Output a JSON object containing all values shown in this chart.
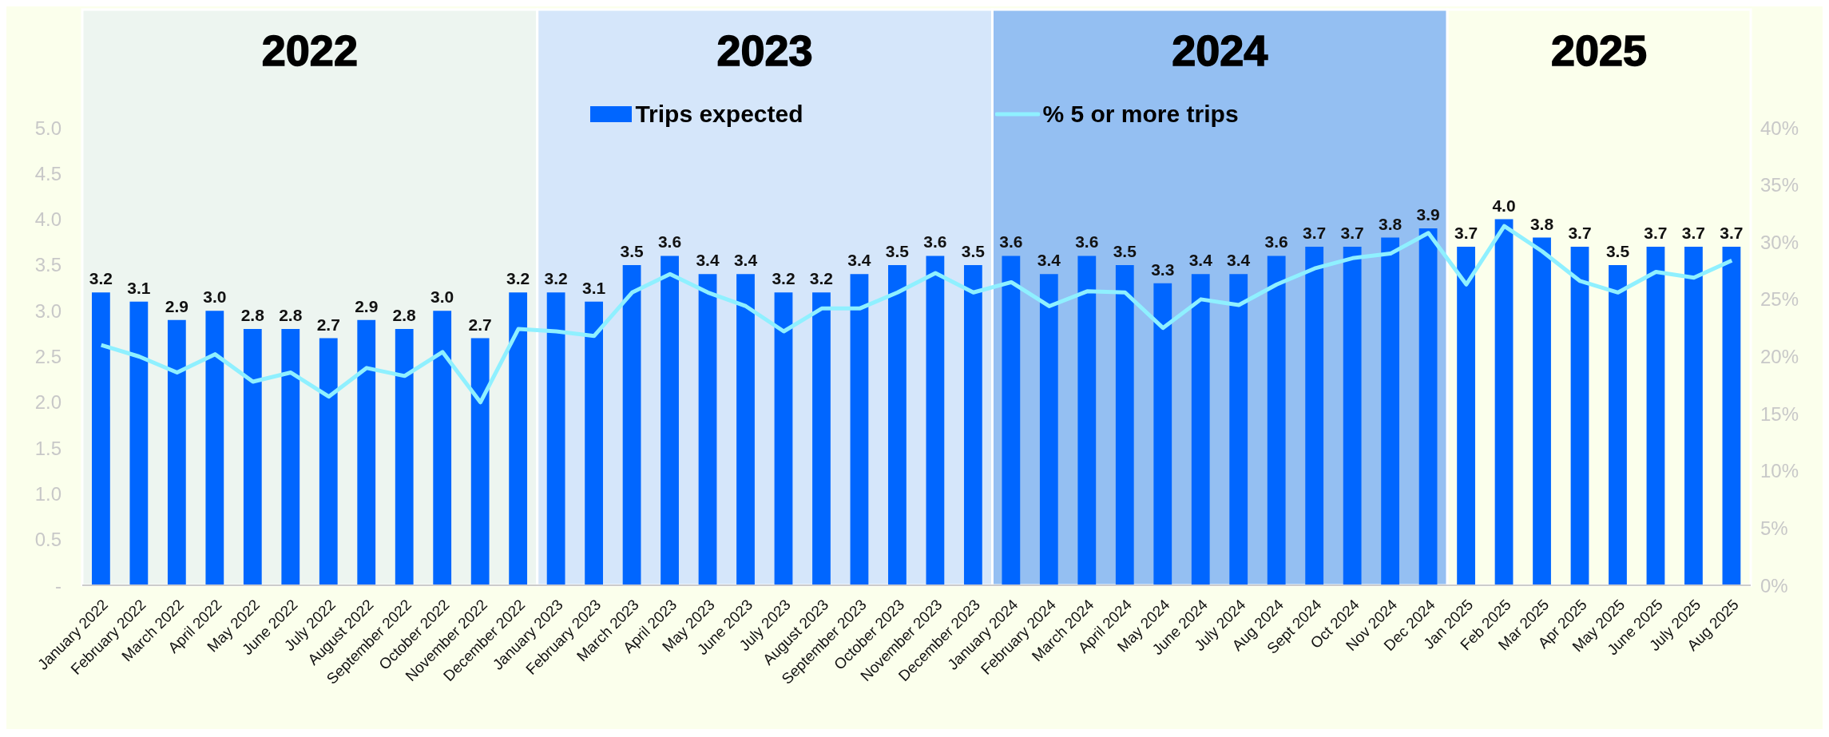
{
  "chart_data": {
    "type": "bar",
    "categories": [
      "January 2022",
      "February 2022",
      "March 2022",
      "April 2022",
      "May 2022",
      "June 2022",
      "July 2022",
      "August 2022",
      "September 2022",
      "October 2022",
      "November 2022",
      "December 2022",
      "January 2023",
      "February 2023",
      "March 2023",
      "April 2023",
      "May 2023",
      "June 2023",
      "July 2023",
      "August 2023",
      "September 2023",
      "October 2023",
      "November 2023",
      "December 2023",
      "January 2024",
      "February 2024",
      "March 2024",
      "April 2024",
      "May 2024",
      "June 2024",
      "July 2024",
      "Aug 2024",
      "Sept 2024",
      "Oct 2024",
      "Nov 2024",
      "Dec 2024",
      "Jan 2025",
      "Feb 2025",
      "Mar 2025",
      "Apr 2025",
      "May 2025",
      "June 2025",
      "July 2025",
      "Aug 2025"
    ],
    "series": [
      {
        "name": "Trips expected",
        "color": "#0066ff",
        "values": [
          3.2,
          3.1,
          2.9,
          3.0,
          2.8,
          2.8,
          2.7,
          2.9,
          2.8,
          3.0,
          2.7,
          3.2,
          3.2,
          3.1,
          3.5,
          3.6,
          3.4,
          3.4,
          3.2,
          3.2,
          3.4,
          3.5,
          3.6,
          3.5,
          3.6,
          3.4,
          3.6,
          3.5,
          3.3,
          3.4,
          3.4,
          3.6,
          3.7,
          3.7,
          3.8,
          3.9,
          3.7,
          4.0,
          3.8,
          3.7,
          3.5,
          3.7,
          3.7,
          3.7
        ],
        "value_labels": [
          "3.2",
          "3.1",
          "2.9",
          "3.0",
          "2.8",
          "2.8",
          "2.7",
          "2.9",
          "2.8",
          "3.0",
          "2.7",
          "3.2",
          "3.2",
          "3.1",
          "3.5",
          "3.6",
          "3.4",
          "3.4",
          "3.2",
          "3.2",
          "3.4",
          "3.5",
          "3.6",
          "3.5",
          "3.6",
          "3.4",
          "3.6",
          "3.5",
          "3.3",
          "3.4",
          "3.4",
          "3.6",
          "3.7",
          "3.7",
          "3.8",
          "3.9",
          "3.7",
          "4.0",
          "3.8",
          "3.7",
          "3.5",
          "3.7",
          "3.7",
          "3.7"
        ]
      },
      {
        "name": "% 5 or more trips",
        "type": "line",
        "axis": "y2",
        "color": "#8ff0ff",
        "values": [
          21.0,
          20.0,
          18.6,
          20.2,
          17.8,
          18.6,
          16.5,
          19.0,
          18.3,
          20.4,
          16.0,
          22.4,
          22.2,
          21.8,
          25.6,
          27.2,
          25.6,
          24.4,
          22.2,
          24.2,
          24.2,
          25.6,
          27.3,
          25.6,
          26.5,
          24.4,
          25.7,
          25.6,
          22.5,
          25.0,
          24.5,
          26.3,
          27.7,
          28.6,
          29.0,
          30.8,
          26.3,
          31.4,
          29.2,
          26.6,
          25.6,
          27.4,
          26.9,
          28.4
        ]
      }
    ],
    "ylim": [
      0,
      5
    ],
    "yticks": [
      {
        "value": 0,
        "label": "-"
      },
      {
        "value": 0.5,
        "label": "0.5"
      },
      {
        "value": 1,
        "label": "1.0"
      },
      {
        "value": 1.5,
        "label": "1.5"
      },
      {
        "value": 2,
        "label": "2.0"
      },
      {
        "value": 2.5,
        "label": "2.5"
      },
      {
        "value": 3,
        "label": "3.0"
      },
      {
        "value": 3.5,
        "label": "3.5"
      },
      {
        "value": 4,
        "label": "4.0"
      },
      {
        "value": 4.5,
        "label": "4.5"
      },
      {
        "value": 5,
        "label": "5.0"
      }
    ],
    "y2lim": [
      0,
      40
    ],
    "y2ticks": [
      {
        "value": 0,
        "label": "0%"
      },
      {
        "value": 5,
        "label": "5%"
      },
      {
        "value": 10,
        "label": "10%"
      },
      {
        "value": 15,
        "label": "15%"
      },
      {
        "value": 20,
        "label": "20%"
      },
      {
        "value": 25,
        "label": "25%"
      },
      {
        "value": 30,
        "label": "30%"
      },
      {
        "value": 35,
        "label": "35%"
      },
      {
        "value": 40,
        "label": "40%"
      }
    ],
    "bands": [
      {
        "axis": "x",
        "from": "January 2022",
        "to": "December 2022",
        "label": "2022",
        "color": "#edf5f0"
      },
      {
        "axis": "x",
        "from": "January 2023",
        "to": "December 2023",
        "label": "2023",
        "color": "#d5e6fa"
      },
      {
        "axis": "x",
        "from": "January 2024",
        "to": "Dec 2024",
        "label": "2024",
        "color": "#94bff2"
      },
      {
        "axis": "x",
        "from": "Jan 2025",
        "to": "Aug 2025",
        "label": "2025",
        "color": "#fbffec"
      }
    ],
    "legend": "top",
    "marker": "none",
    "line_style": "solid"
  }
}
